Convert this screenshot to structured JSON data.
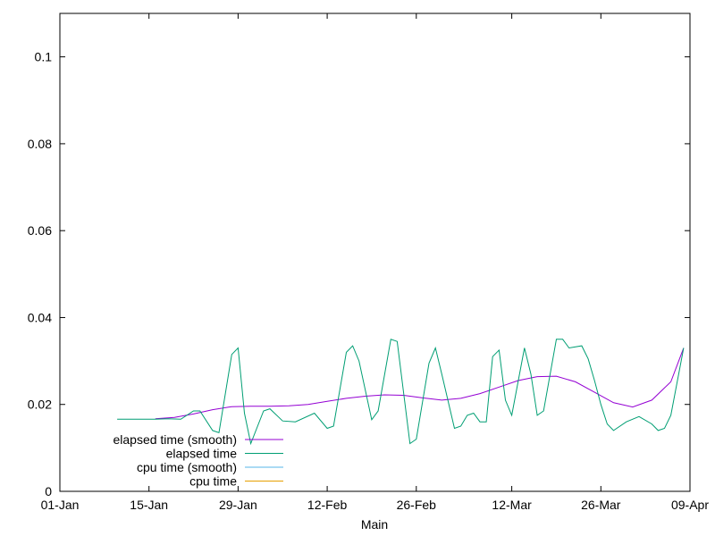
{
  "chart_data": {
    "type": "line",
    "title": "",
    "xlabel": "Main",
    "ylabel": "",
    "xlim": [
      "2024-01-01",
      "2024-04-09"
    ],
    "ylim": [
      0,
      0.11
    ],
    "x_ticks": [
      {
        "date": "2024-01-01",
        "label": "01-Jan"
      },
      {
        "date": "2024-01-15",
        "label": "15-Jan"
      },
      {
        "date": "2024-01-29",
        "label": "29-Jan"
      },
      {
        "date": "2024-02-12",
        "label": "12-Feb"
      },
      {
        "date": "2024-02-26",
        "label": "26-Feb"
      },
      {
        "date": "2024-03-12",
        "label": "12-Mar"
      },
      {
        "date": "2024-03-26",
        "label": "26-Mar"
      },
      {
        "date": "2024-04-09",
        "label": "09-Apr"
      }
    ],
    "y_ticks": [
      {
        "value": 0,
        "label": "0"
      },
      {
        "value": 0.02,
        "label": "0.02"
      },
      {
        "value": 0.04,
        "label": "0.04"
      },
      {
        "value": 0.06,
        "label": "0.06"
      },
      {
        "value": 0.08,
        "label": "0.08"
      },
      {
        "value": 0.1,
        "label": "0.1"
      }
    ],
    "grid": false,
    "legend_position": "bottom-left",
    "series": [
      {
        "name": "elapsed time (smooth)",
        "color": "#9400d3",
        "points": [
          [
            "2024-01-16",
            0.0167
          ],
          [
            "2024-01-19",
            0.017
          ],
          [
            "2024-01-22",
            0.0178
          ],
          [
            "2024-01-25",
            0.0188
          ],
          [
            "2024-01-28",
            0.0195
          ],
          [
            "2024-01-31",
            0.0196
          ],
          [
            "2024-02-03",
            0.0196
          ],
          [
            "2024-02-06",
            0.0197
          ],
          [
            "2024-02-09",
            0.02
          ],
          [
            "2024-02-12",
            0.0207
          ],
          [
            "2024-02-15",
            0.0214
          ],
          [
            "2024-02-18",
            0.0219
          ],
          [
            "2024-02-21",
            0.0222
          ],
          [
            "2024-02-24",
            0.0221
          ],
          [
            "2024-02-27",
            0.0215
          ],
          [
            "2024-03-01",
            0.021
          ],
          [
            "2024-03-04",
            0.0214
          ],
          [
            "2024-03-07",
            0.0225
          ],
          [
            "2024-03-10",
            0.024
          ],
          [
            "2024-03-13",
            0.0255
          ],
          [
            "2024-03-16",
            0.0264
          ],
          [
            "2024-03-19",
            0.0265
          ],
          [
            "2024-03-22",
            0.0252
          ],
          [
            "2024-03-25",
            0.0228
          ],
          [
            "2024-03-28",
            0.0204
          ],
          [
            "2024-03-31",
            0.0194
          ],
          [
            "2024-04-03",
            0.021
          ],
          [
            "2024-04-06",
            0.0252
          ],
          [
            "2024-04-08",
            0.033
          ]
        ]
      },
      {
        "name": "elapsed time",
        "color": "#009e73",
        "points": [
          [
            "2024-01-10",
            0.0166
          ],
          [
            "2024-01-13",
            0.0166
          ],
          [
            "2024-01-16",
            0.0166
          ],
          [
            "2024-01-18",
            0.0167
          ],
          [
            "2024-01-20",
            0.0166
          ],
          [
            "2024-01-22",
            0.0185
          ],
          [
            "2024-01-23",
            0.0185
          ],
          [
            "2024-01-25",
            0.014
          ],
          [
            "2024-01-26",
            0.0135
          ],
          [
            "2024-01-28",
            0.0315
          ],
          [
            "2024-01-29",
            0.033
          ],
          [
            "2024-01-30",
            0.018
          ],
          [
            "2024-01-31",
            0.011
          ],
          [
            "2024-02-02",
            0.0185
          ],
          [
            "2024-02-03",
            0.019
          ],
          [
            "2024-02-05",
            0.0162
          ],
          [
            "2024-02-07",
            0.016
          ],
          [
            "2024-02-10",
            0.018
          ],
          [
            "2024-02-12",
            0.0145
          ],
          [
            "2024-02-13",
            0.015
          ],
          [
            "2024-02-15",
            0.032
          ],
          [
            "2024-02-16",
            0.0335
          ],
          [
            "2024-02-17",
            0.03
          ],
          [
            "2024-02-19",
            0.0165
          ],
          [
            "2024-02-20",
            0.0185
          ],
          [
            "2024-02-22",
            0.035
          ],
          [
            "2024-02-23",
            0.0345
          ],
          [
            "2024-02-25",
            0.011
          ],
          [
            "2024-02-26",
            0.012
          ],
          [
            "2024-02-28",
            0.0295
          ],
          [
            "2024-02-29",
            0.033
          ],
          [
            "2024-03-01",
            0.027
          ],
          [
            "2024-03-03",
            0.0145
          ],
          [
            "2024-03-04",
            0.015
          ],
          [
            "2024-03-05",
            0.0175
          ],
          [
            "2024-03-06",
            0.018
          ],
          [
            "2024-03-07",
            0.016
          ],
          [
            "2024-03-08",
            0.016
          ],
          [
            "2024-03-09",
            0.031
          ],
          [
            "2024-03-10",
            0.0325
          ],
          [
            "2024-03-11",
            0.021
          ],
          [
            "2024-03-12",
            0.0175
          ],
          [
            "2024-03-14",
            0.033
          ],
          [
            "2024-03-15",
            0.027
          ],
          [
            "2024-03-16",
            0.0175
          ],
          [
            "2024-03-17",
            0.0185
          ],
          [
            "2024-03-19",
            0.035
          ],
          [
            "2024-03-20",
            0.035
          ],
          [
            "2024-03-21",
            0.033
          ],
          [
            "2024-03-23",
            0.0335
          ],
          [
            "2024-03-24",
            0.0305
          ],
          [
            "2024-03-25",
            0.0255
          ],
          [
            "2024-03-26",
            0.02
          ],
          [
            "2024-03-27",
            0.0155
          ],
          [
            "2024-03-28",
            0.014
          ],
          [
            "2024-03-30",
            0.016
          ],
          [
            "2024-04-01",
            0.0172
          ],
          [
            "2024-04-03",
            0.0155
          ],
          [
            "2024-04-04",
            0.014
          ],
          [
            "2024-04-05",
            0.0145
          ],
          [
            "2024-04-06",
            0.0175
          ],
          [
            "2024-04-08",
            0.033
          ]
        ]
      },
      {
        "name": "cpu time (smooth)",
        "color": "#56b4e9",
        "points": []
      },
      {
        "name": "cpu time",
        "color": "#e69f00",
        "points": []
      }
    ]
  }
}
